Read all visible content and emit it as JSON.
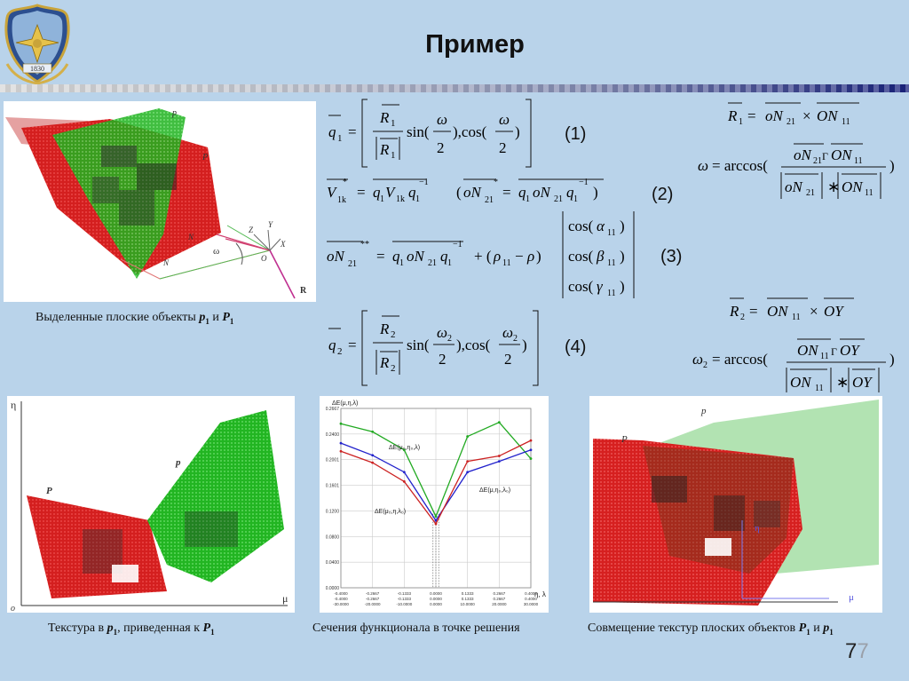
{
  "slide": {
    "title": "Пример",
    "page_number_main": "7",
    "page_number_ghost": "7",
    "logo_year": "1830"
  },
  "captions": {
    "top_left": "Выделенные плоские объекты",
    "top_left_p1": "p",
    "top_left_p1_sub": "1",
    "top_left_and": " и ",
    "top_left_P1": "P",
    "top_left_P1_sub": "1",
    "bottom_left": "Текстура в ",
    "bottom_left_p1": "p",
    "bottom_left_p1_sub": "1",
    "bottom_left_mid": ", приведенная к ",
    "bottom_left_P1": "P",
    "bottom_left_P1_sub": "1",
    "bottom_center": "Сечения функционала в точке  решения",
    "bottom_right": "Совмещение текстур  плоских объектов ",
    "bottom_right_P1": "P",
    "bottom_right_P1_sub": "1",
    "bottom_right_and": " и ",
    "bottom_right_p1": "p",
    "bottom_right_p1_sub": "1"
  },
  "equations": {
    "n1": "(1)",
    "n2": "(2)",
    "n3": "(3)",
    "n4": "(4)"
  },
  "figure_labels": {
    "top_p1": "p",
    "top_P1": "P",
    "N11": "N",
    "N21": "N",
    "omega": "ω",
    "O": "O",
    "Z": "Z",
    "Y": "Y",
    "X": "X",
    "R1": "R",
    "eta": "η",
    "mu": "μ",
    "o": "o",
    "bl_p1": "p",
    "bl_P1": "P",
    "br_p1": "p",
    "br_P1": "P",
    "mu1": "μ",
    "eta1": "η"
  },
  "chart_data": {
    "type": "line",
    "title": "",
    "ylabel": "ΔE(μ,η,λ)",
    "xlabel": "η, λ",
    "x": [
      -0.4,
      -0.2667,
      -0.1333,
      0.0,
      0.1333,
      0.2667,
      0.4
    ],
    "x_tick_rows": [
      [
        "-0.4000",
        "-0.2667",
        "-0.1333",
        "0.0000",
        "0.1333",
        "0.2667",
        "0.4000"
      ],
      [
        "-0.4000",
        "-0.2667",
        "-0.1333",
        "0.0000",
        "0.1333",
        "0.2667",
        "0.4000"
      ],
      [
        "-30.0000",
        "-20.0000",
        "-10.0000",
        "0.0000",
        "10.0000",
        "20.0000",
        "30.0000"
      ]
    ],
    "y_ticks": [
      "0.2667",
      "0.2400",
      "0.2001",
      "0.1601",
      "0.1200",
      "0.0800",
      "0.0400",
      "0.0000"
    ],
    "ylim": [
      0,
      0.2667
    ],
    "series": [
      {
        "name": "ΔE(μ₀,η₀,λ)",
        "color": "#22aa22",
        "values": [
          0.244,
          0.232,
          0.205,
          0.106,
          0.225,
          0.246,
          0.192
        ]
      },
      {
        "name": "ΔE(μ,η₀,λ₀)",
        "color": "#2222cc",
        "values": [
          0.215,
          0.197,
          0.172,
          0.1,
          0.172,
          0.188,
          0.205
        ]
      },
      {
        "name": "ΔE(μ₀,η,λ₀)",
        "color": "#cc2222",
        "values": [
          0.203,
          0.186,
          0.158,
          0.095,
          0.188,
          0.196,
          0.219
        ]
      }
    ],
    "annotations": [
      "ΔE(μ₀,η₀,λ)",
      "ΔE(μ₀,η,λ₀)",
      "ΔE(μ,η₀,λ₀)"
    ],
    "grid": true
  }
}
